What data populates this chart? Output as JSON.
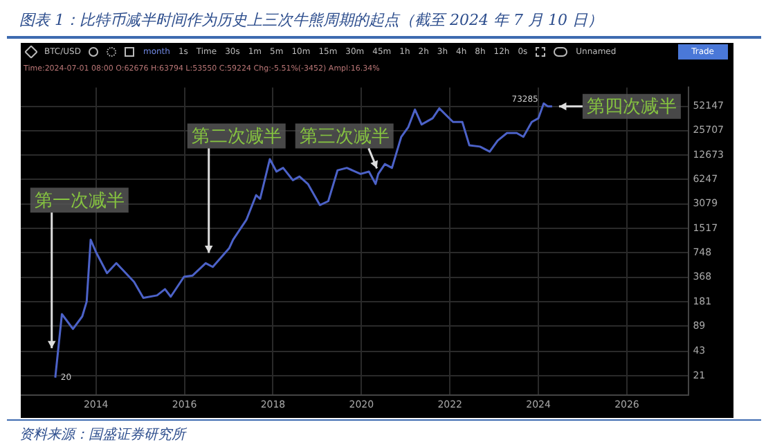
{
  "chart_data": {
    "type": "line",
    "title": "图表 1：比特币减半时间作为历史上三次牛熊周期的起点（截至 2024 年 7 月 10 日）",
    "x": [
      2013.08,
      2013.23,
      2013.48,
      2013.69,
      2013.79,
      2013.88,
      2014.0,
      2014.25,
      2014.46,
      2014.86,
      2015.07,
      2015.38,
      2015.56,
      2015.69,
      2015.99,
      2016.18,
      2016.48,
      2016.64,
      2017.01,
      2017.1,
      2017.4,
      2017.62,
      2017.71,
      2017.93,
      2018.08,
      2018.23,
      2018.45,
      2018.6,
      2018.79,
      2019.06,
      2019.25,
      2019.46,
      2019.67,
      2019.98,
      2020.17,
      2020.32,
      2020.38,
      2020.53,
      2020.69,
      2020.9,
      2021.06,
      2021.21,
      2021.36,
      2021.61,
      2021.76,
      2022.07,
      2022.28,
      2022.44,
      2022.68,
      2022.9,
      2023.08,
      2023.29,
      2023.51,
      2023.66,
      2023.85,
      2024.0,
      2024.12,
      2024.21,
      2024.31
    ],
    "series": [
      {
        "color": "#4c62c8",
        "values": [
          20,
          126,
          82,
          118,
          181,
          1090,
          762,
          414,
          552,
          322,
          202,
          217,
          260,
          209,
          372,
          385,
          552,
          495,
          850,
          1090,
          1940,
          3970,
          3570,
          11280,
          7860,
          8740,
          6130,
          6810,
          5490,
          2980,
          3330,
          8150,
          8740,
          7340,
          7860,
          5490,
          7340,
          9760,
          8740,
          21500,
          28600,
          47400,
          30800,
          36900,
          49100,
          33100,
          33100,
          16800,
          16200,
          14000,
          19300,
          24000,
          24000,
          21500,
          33100,
          36900,
          56700,
          52100,
          52100
        ]
      }
    ],
    "xlim": [
      2012.3,
      2027.4
    ],
    "xticks": [
      2014,
      2016,
      2018,
      2020,
      2022,
      2024,
      2026
    ],
    "ylim": [
      12,
      90000
    ],
    "yticks": [
      21,
      43,
      89,
      181,
      368,
      748,
      1517,
      3079,
      6247,
      12673,
      25707,
      52147
    ],
    "log": "y",
    "grid": true,
    "marker": "none",
    "line_style": "solid",
    "annotations": [
      "BTC/USD",
      "month",
      "1s",
      "Time",
      "30s",
      "1m",
      "5m",
      "10m",
      "15m",
      "30m",
      "45m",
      "1h",
      "2h",
      "3h",
      "4h",
      "8h",
      "12h",
      "0s",
      "Unnamed",
      "Trade",
      "Time:2024-07-01 08:00 O:62676 H:63794 L:53550 C:59224 Chg:-5.51%(-3452) Ampl:16.34%",
      "资料来源：国盛证券研究所",
      {
        "text": "第一次减半",
        "x": 2013.0,
        "y": 40
      },
      {
        "text": "第二次减半",
        "x": 2016.55,
        "y": 634
      },
      {
        "text": "第三次减半",
        "x": 2020.35,
        "y": 7340
      },
      {
        "text": "第四次减半",
        "x": 2024.31,
        "y": 52100
      },
      {
        "text": "20",
        "x": 2013.08,
        "y": 20
      },
      {
        "text": "73285",
        "x": 2024.12,
        "y": 56700
      }
    ]
  }
}
